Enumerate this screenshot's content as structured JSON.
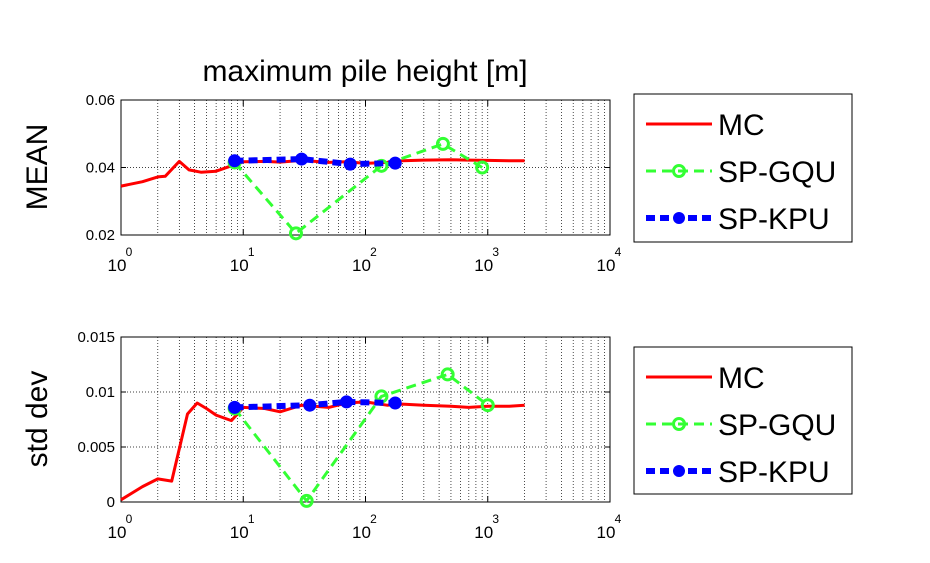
{
  "title": "maximum pile height [m]",
  "chart_data": [
    {
      "type": "line",
      "ylabel": "MEAN",
      "xscale": "log",
      "xlim": [
        1,
        10000
      ],
      "ylim": [
        0.02,
        0.06
      ],
      "yticks": [
        {
          "value": 0.02,
          "label": "0.02"
        },
        {
          "value": 0.04,
          "label": "0.04"
        },
        {
          "value": 0.06,
          "label": "0.06"
        }
      ],
      "xticks": [
        {
          "value": 1,
          "base": "10",
          "exp": "0"
        },
        {
          "value": 10,
          "base": "10",
          "exp": "1"
        },
        {
          "value": 100,
          "base": "10",
          "exp": "2"
        },
        {
          "value": 1000,
          "base": "10",
          "exp": "3"
        },
        {
          "value": 10000,
          "base": "10",
          "exp": "4"
        }
      ],
      "grid": true,
      "legend_position": "outside-right",
      "series": [
        {
          "name": "MC",
          "color": "#ff0000",
          "style": "solid",
          "marker": "none",
          "x": [
            1,
            1.5,
            2,
            2.3,
            3,
            3.6,
            4.5,
            6,
            8,
            10,
            15,
            20,
            30,
            50,
            70,
            100,
            150,
            200,
            300,
            500,
            700,
            1000,
            1500,
            2000
          ],
          "y": [
            0.0345,
            0.0358,
            0.0372,
            0.0374,
            0.0418,
            0.0393,
            0.0386,
            0.0389,
            0.0405,
            0.0417,
            0.0418,
            0.0416,
            0.0421,
            0.0415,
            0.0417,
            0.0412,
            0.0415,
            0.042,
            0.0422,
            0.0423,
            0.0422,
            0.0421,
            0.042,
            0.042
          ]
        },
        {
          "name": "SP-GQU",
          "color": "#33ff33",
          "style": "dashed",
          "marker": "circle",
          "x": [
            8.5,
            27,
            135,
            430,
            900
          ],
          "y": [
            0.0415,
            0.0205,
            0.0405,
            0.047,
            0.04
          ]
        },
        {
          "name": "SP-KPU",
          "color": "#0000ff",
          "style": "dashed",
          "marker": "square",
          "x": [
            8.5,
            30,
            75,
            175
          ],
          "y": [
            0.042,
            0.0425,
            0.041,
            0.0413
          ]
        }
      ]
    },
    {
      "type": "line",
      "ylabel": "std dev",
      "xscale": "log",
      "xlim": [
        1,
        10000
      ],
      "ylim": [
        0,
        0.015
      ],
      "yticks": [
        {
          "value": 0,
          "label": "0"
        },
        {
          "value": 0.005,
          "label": "0.005"
        },
        {
          "value": 0.01,
          "label": "0.01"
        },
        {
          "value": 0.015,
          "label": "0.015"
        }
      ],
      "xticks": [
        {
          "value": 1,
          "base": "10",
          "exp": "0"
        },
        {
          "value": 10,
          "base": "10",
          "exp": "1"
        },
        {
          "value": 100,
          "base": "10",
          "exp": "2"
        },
        {
          "value": 1000,
          "base": "10",
          "exp": "3"
        },
        {
          "value": 10000,
          "base": "10",
          "exp": "4"
        }
      ],
      "grid": true,
      "legend_position": "outside-right",
      "series": [
        {
          "name": "MC",
          "color": "#ff0000",
          "style": "solid",
          "marker": "none",
          "x": [
            1,
            1.5,
            2,
            2.6,
            3.5,
            4.2,
            5,
            6,
            8,
            10,
            15,
            20,
            30,
            50,
            70,
            100,
            150,
            200,
            300,
            500,
            700,
            1000,
            1500,
            2000
          ],
          "y": [
            0.0002,
            0.0014,
            0.0021,
            0.0019,
            0.008,
            0.009,
            0.0085,
            0.0079,
            0.0074,
            0.0086,
            0.0085,
            0.0082,
            0.0088,
            0.0086,
            0.009,
            0.0091,
            0.0088,
            0.0089,
            0.0088,
            0.0087,
            0.0086,
            0.0087,
            0.0087,
            0.0088
          ]
        },
        {
          "name": "SP-GQU",
          "color": "#33ff33",
          "style": "dashed",
          "marker": "circle",
          "x": [
            8.5,
            33,
            135,
            470,
            1000
          ],
          "y": [
            0.0085,
            0.0001,
            0.0096,
            0.0116,
            0.0088
          ]
        },
        {
          "name": "SP-KPU",
          "color": "#0000ff",
          "style": "dashed",
          "marker": "square",
          "x": [
            8.5,
            35,
            70,
            175
          ],
          "y": [
            0.0086,
            0.0088,
            0.0091,
            0.009
          ]
        }
      ]
    }
  ]
}
